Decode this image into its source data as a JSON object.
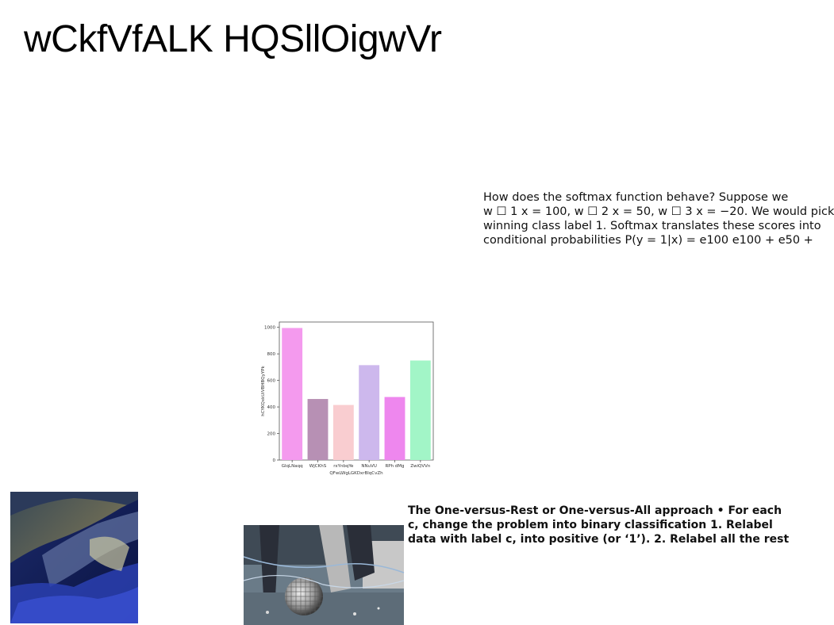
{
  "slide": {
    "title": "wCkfVfALK HQSllOigwVr",
    "paragraph_softmax": [
      "How does the softmax function behave? Suppose we",
      "w ☐ 1 x = 100, w ☐ 2 x = 50, w ☐ 3 x = −20. We would pick",
      "winning class label 1. Softmax translates these scores into",
      "conditional probabilities P(y = 1|x) = e100 e100 + e50 +"
    ],
    "paragraph_ovr": [
      "The One-versus-Rest or One-versus-All approach • For each",
      "c, change the problem into binary classification 1. Relabel",
      "data with label c, into positive (or ‘1’). 2. Relabel all the rest"
    ]
  },
  "chart_data": {
    "type": "bar",
    "categories": [
      "GlqLNaqq",
      "WjCKhS",
      "rxYnbqYe",
      "NNuVU",
      "RPh dMg",
      "ZwiQVVn"
    ],
    "values": [
      995,
      460,
      415,
      715,
      475,
      750
    ],
    "colors": [
      "#f49aee",
      "#b790b4",
      "#f9cdd0",
      "#cdb8ed",
      "#ee87ee",
      "#a2f5c7"
    ],
    "xlabel": "QFwLWgLGKDxrBlqCvZh",
    "ylabel": "hCYKQxkUiVBHBQyYPk",
    "ylim": [
      0,
      1040
    ],
    "yticks": [
      0,
      200,
      400,
      600,
      800,
      1000
    ]
  }
}
